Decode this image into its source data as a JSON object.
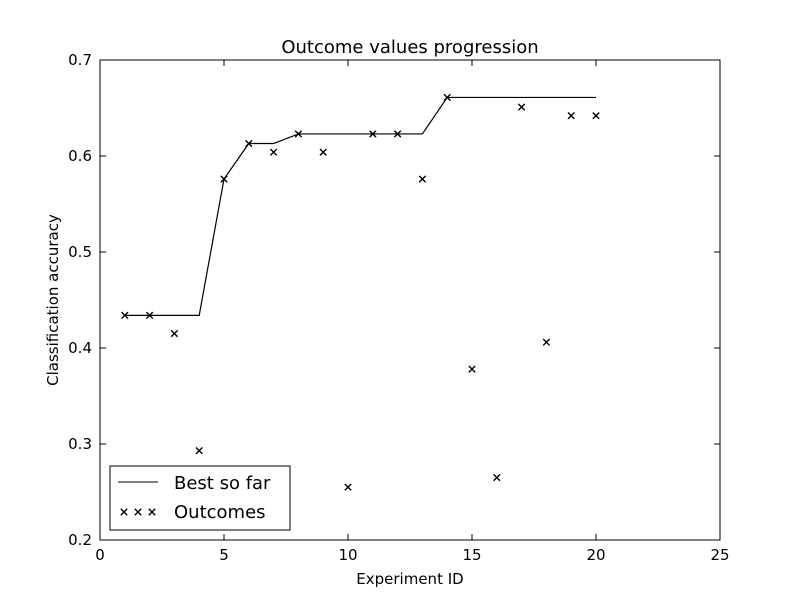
{
  "chart_data": {
    "type": "line",
    "title": "Outcome values progression",
    "xlabel": "Experiment ID",
    "ylabel": "Classification accuracy",
    "xlim": [
      0,
      25
    ],
    "ylim": [
      0.2,
      0.7
    ],
    "xticks": [
      "0",
      "5",
      "10",
      "15",
      "20",
      "25"
    ],
    "yticks": [
      "0.2",
      "0.3",
      "0.4",
      "0.5",
      "0.6",
      "0.7"
    ],
    "grid": false,
    "legend_position": "bottom-left",
    "series": [
      {
        "name": "Best so far",
        "style": "line",
        "color": "#000000",
        "x": [
          1,
          2,
          3,
          4,
          5,
          6,
          7,
          8,
          9,
          10,
          11,
          12,
          13,
          14,
          15,
          16,
          17,
          18,
          19,
          20
        ],
        "y": [
          0.434,
          0.434,
          0.434,
          0.434,
          0.576,
          0.613,
          0.613,
          0.623,
          0.623,
          0.623,
          0.623,
          0.623,
          0.623,
          0.661,
          0.661,
          0.661,
          0.661,
          0.661,
          0.661,
          0.661
        ]
      },
      {
        "name": "Outcomes",
        "style": "x-markers",
        "color": "#000000",
        "x": [
          1,
          2,
          3,
          4,
          5,
          6,
          7,
          8,
          9,
          10,
          11,
          12,
          13,
          14,
          15,
          16,
          17,
          18,
          19,
          20
        ],
        "y": [
          0.434,
          0.434,
          0.415,
          0.293,
          0.576,
          0.613,
          0.604,
          0.623,
          0.604,
          0.255,
          0.623,
          0.623,
          0.576,
          0.661,
          0.378,
          0.265,
          0.651,
          0.406,
          0.642,
          0.642
        ]
      }
    ]
  }
}
